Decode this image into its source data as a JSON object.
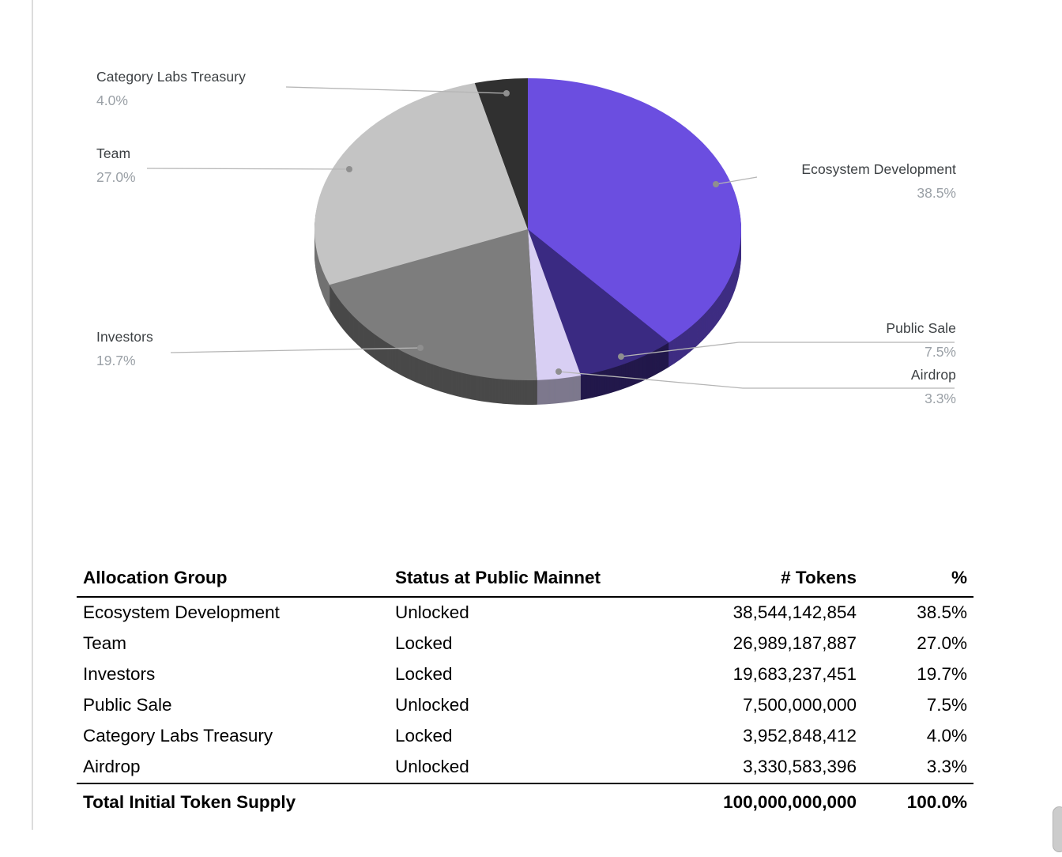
{
  "chart_data": {
    "type": "pie",
    "style": "3d",
    "title": "",
    "direction": "clockwise",
    "start_angle_deg": 0,
    "legend_position": "none",
    "labels_outside": true,
    "slices": [
      {
        "label": "Ecosystem Development",
        "value": 38.5,
        "pct": "38.5%",
        "color": "#6B4EE0"
      },
      {
        "label": "Public Sale",
        "value": 7.5,
        "pct": "7.5%",
        "color": "#3A2A82"
      },
      {
        "label": "Airdrop",
        "value": 3.3,
        "pct": "3.3%",
        "color": "#D8CFF3"
      },
      {
        "label": "Investors",
        "value": 19.7,
        "pct": "19.7%",
        "color": "#7D7D7D"
      },
      {
        "label": "Team",
        "value": 27.0,
        "pct": "27.0%",
        "color": "#C4C4C4"
      },
      {
        "label": "Category Labs Treasury",
        "value": 4.0,
        "pct": "4.0%",
        "color": "#303030"
      }
    ]
  },
  "table": {
    "headers": [
      "Allocation Group",
      "Status at Public Mainnet",
      "# Tokens",
      "%"
    ],
    "rows": [
      [
        "Ecosystem Development",
        "Unlocked",
        "38,544,142,854",
        "38.5%"
      ],
      [
        "Team",
        "Locked",
        "26,989,187,887",
        "27.0%"
      ],
      [
        "Investors",
        "Locked",
        "19,683,237,451",
        "19.7%"
      ],
      [
        "Public Sale",
        "Unlocked",
        "7,500,000,000",
        "7.5%"
      ],
      [
        "Category Labs Treasury",
        "Locked",
        "3,952,848,412",
        "4.0%"
      ],
      [
        "Airdrop",
        "Unlocked",
        "3,330,583,396",
        "3.3%"
      ]
    ],
    "total_row": {
      "label": "Total Initial Token Supply",
      "tokens": "100,000,000,000",
      "pct": "100.0%"
    }
  }
}
